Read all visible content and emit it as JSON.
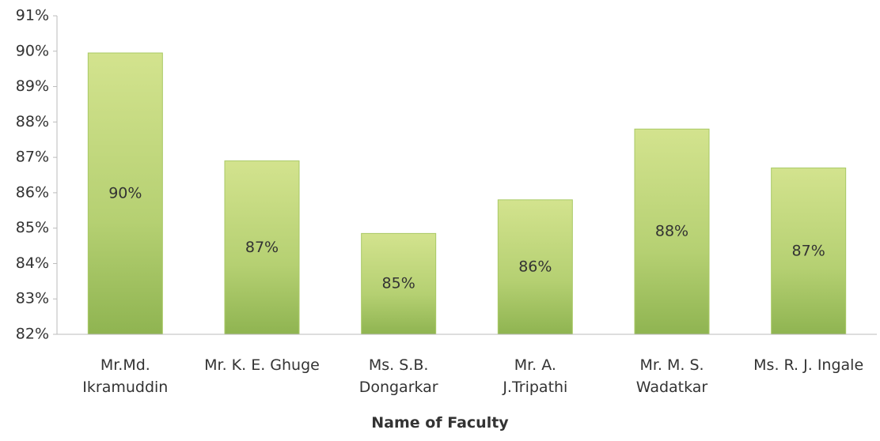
{
  "chart_data": {
    "type": "bar",
    "x_label": "Name of Faculty",
    "categories": [
      "Mr.Md.\nIkramuddin",
      "Mr. K. E. Ghuge",
      "Ms. S.B.\nDongarkar",
      "Mr. A.\nJ.Tripathi",
      "Mr. M. S.\nWadatkar",
      "Ms. R. J. Ingale"
    ],
    "values": [
      89.95,
      86.9,
      84.85,
      85.8,
      87.8,
      86.7
    ],
    "value_labels": [
      "90%",
      "87%",
      "85%",
      "86%",
      "88%",
      "87%"
    ],
    "color": "#a9c965",
    "ylim": [
      82,
      91
    ],
    "yticks": [
      {
        "value": 82,
        "label": "82%"
      },
      {
        "value": 83,
        "label": "83%"
      },
      {
        "value": 84,
        "label": "84%"
      },
      {
        "value": 85,
        "label": "85%"
      },
      {
        "value": 86,
        "label": "86%"
      },
      {
        "value": 87,
        "label": "87%"
      },
      {
        "value": 88,
        "label": "88%"
      },
      {
        "value": 89,
        "label": "89%"
      },
      {
        "value": 90,
        "label": "90%"
      },
      {
        "value": 91,
        "label": "91%"
      }
    ]
  }
}
